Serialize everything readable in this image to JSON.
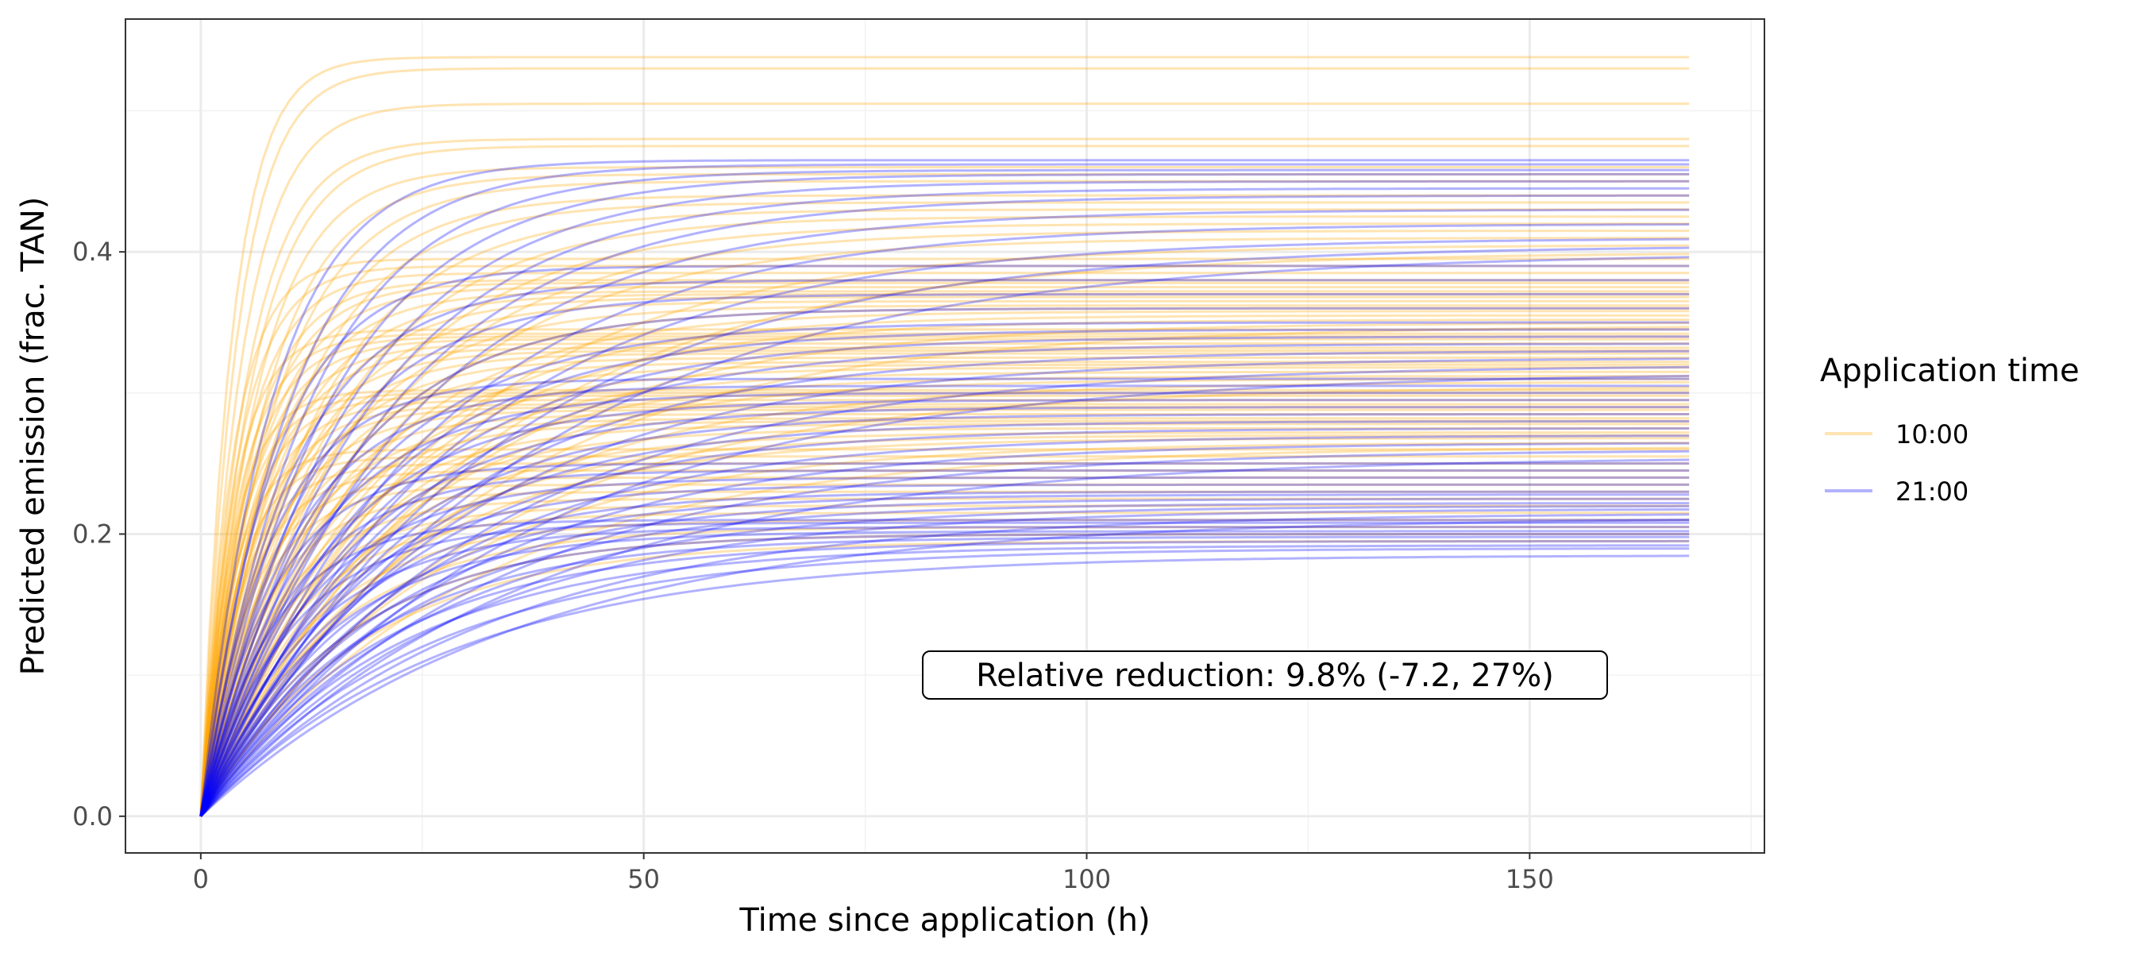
{
  "chart_data": {
    "type": "line",
    "title": "",
    "xlabel": "Time since application (h)",
    "ylabel": "Predicted emission (frac. TAN)",
    "xlim": [
      -8.5,
      176.5
    ],
    "ylim": [
      -0.026,
      0.565
    ],
    "x_ticks": [
      0,
      50,
      100,
      150
    ],
    "y_ticks": [
      0.0,
      0.2,
      0.4
    ],
    "x_tick_labels": [
      "0",
      "50",
      "100",
      "150"
    ],
    "y_tick_labels": [
      "0.0",
      "0.2",
      "0.4"
    ],
    "grid": true,
    "x_max_hours": 168,
    "legend": {
      "title": "Application time",
      "placement": "right",
      "entries": [
        {
          "label": "10:00",
          "color": "#FFA500"
        },
        {
          "label": "21:00",
          "color": "#0000FF"
        }
      ]
    },
    "annotation": {
      "text": "Relative reduction: 9.8% (-7.2, 27%)",
      "x": 120,
      "y": 0.1
    },
    "series": [
      {
        "name": "10:00",
        "color": "#FFA500",
        "opacity": 0.3,
        "description_final_range": [
          0.19,
          0.54
        ],
        "final_values": [
          0.538,
          0.53,
          0.505,
          0.48,
          0.475,
          0.46,
          0.455,
          0.45,
          0.44,
          0.435,
          0.43,
          0.425,
          0.42,
          0.415,
          0.41,
          0.405,
          0.4,
          0.395,
          0.39,
          0.385,
          0.38,
          0.378,
          0.375,
          0.372,
          0.37,
          0.368,
          0.365,
          0.362,
          0.36,
          0.358,
          0.355,
          0.352,
          0.35,
          0.348,
          0.345,
          0.342,
          0.34,
          0.338,
          0.335,
          0.332,
          0.33,
          0.328,
          0.325,
          0.322,
          0.32,
          0.318,
          0.315,
          0.312,
          0.31,
          0.308,
          0.305,
          0.302,
          0.3,
          0.298,
          0.295,
          0.292,
          0.29,
          0.288,
          0.285,
          0.282,
          0.28,
          0.278,
          0.275,
          0.272,
          0.27,
          0.268,
          0.265,
          0.262,
          0.26,
          0.255,
          0.25,
          0.245,
          0.24,
          0.235,
          0.23,
          0.225,
          0.22,
          0.215,
          0.21,
          0.205,
          0.2,
          0.195
        ],
        "time_constants_h": [
          3.5,
          4,
          4.5,
          5,
          5.5,
          6,
          7,
          8,
          9,
          10,
          12,
          14,
          16,
          18,
          20,
          25,
          30
        ]
      },
      {
        "name": "21:00",
        "color": "#0000FF",
        "opacity": 0.3,
        "description_final_range": [
          0.18,
          0.465
        ],
        "final_values": [
          0.465,
          0.462,
          0.458,
          0.455,
          0.45,
          0.445,
          0.44,
          0.43,
          0.42,
          0.41,
          0.405,
          0.4,
          0.39,
          0.38,
          0.37,
          0.36,
          0.35,
          0.345,
          0.34,
          0.335,
          0.33,
          0.325,
          0.32,
          0.315,
          0.31,
          0.305,
          0.3,
          0.295,
          0.29,
          0.285,
          0.28,
          0.275,
          0.27,
          0.265,
          0.26,
          0.255,
          0.25,
          0.245,
          0.24,
          0.235,
          0.23,
          0.228,
          0.225,
          0.222,
          0.22,
          0.218,
          0.215,
          0.212,
          0.21,
          0.208,
          0.205,
          0.202,
          0.2,
          0.198,
          0.195,
          0.192,
          0.19,
          0.185
        ],
        "time_constants_h": [
          8,
          10,
          12,
          14,
          16,
          18,
          20,
          22,
          25,
          28,
          32,
          36
        ]
      }
    ]
  }
}
